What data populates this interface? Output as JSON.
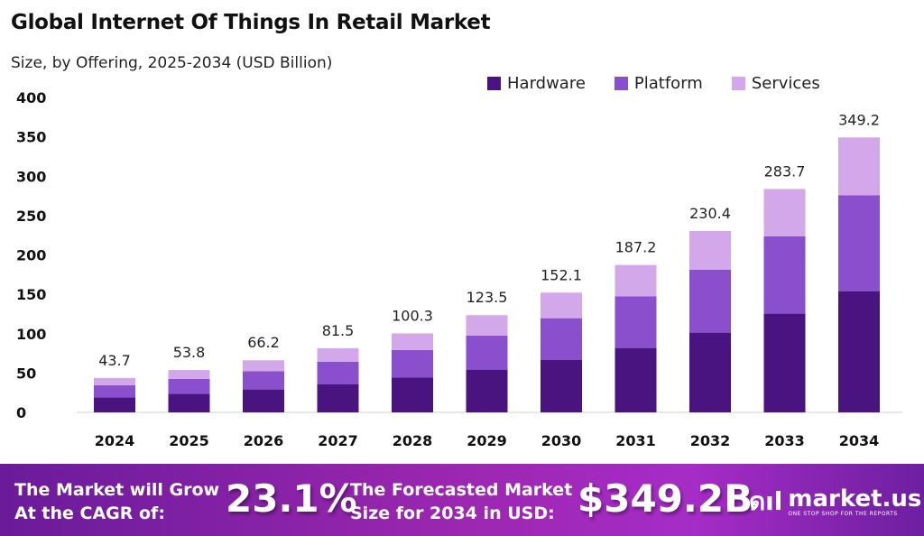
{
  "chart_data": {
    "type": "bar",
    "stacked": true,
    "title": "Global Internet Of Things In Retail Market",
    "subtitle": "Size, by Offering, 2025-2034 (USD Billion)",
    "categories": [
      "2024",
      "2025",
      "2026",
      "2027",
      "2028",
      "2029",
      "2030",
      "2031",
      "2032",
      "2033",
      "2034"
    ],
    "series": [
      {
        "name": "Hardware",
        "color": "#4a1480",
        "values": [
          19.2,
          23.7,
          29.1,
          35.9,
          44.1,
          54.3,
          66.5,
          81.8,
          101.3,
          125.4,
          154.0
        ]
      },
      {
        "name": "Platform",
        "color": "#8a4fcc",
        "values": [
          15.3,
          18.8,
          23.2,
          28.5,
          35.1,
          43.2,
          53.1,
          65.7,
          79.8,
          98.1,
          121.9
        ]
      },
      {
        "name": "Services",
        "color": "#d3a8ea",
        "values": [
          9.2,
          11.3,
          13.9,
          17.1,
          21.1,
          26.0,
          32.5,
          39.7,
          49.3,
          60.2,
          73.3
        ]
      }
    ],
    "totals": [
      "43.7",
      "53.8",
      "66.2",
      "81.5",
      "100.3",
      "123.5",
      "152.1",
      "187.2",
      "230.4",
      "283.7",
      "349.2"
    ],
    "yticks": [
      "0",
      "50",
      "100",
      "150",
      "200",
      "250",
      "300",
      "350",
      "400"
    ],
    "ylim": [
      0,
      400
    ],
    "grid": false,
    "legend": "top-right"
  },
  "footer": {
    "cagr_label_1": "The Market will Grow",
    "cagr_label_2": "At the CAGR of:",
    "cagr_value": "23.1%",
    "forecast_label_1": "The Forecasted Market",
    "forecast_label_2": "Size for 2034 in USD:",
    "forecast_value": "$349.2B",
    "brand": "market.us",
    "tagline": "ONE STOP SHOP FOR THE REPORTS"
  }
}
